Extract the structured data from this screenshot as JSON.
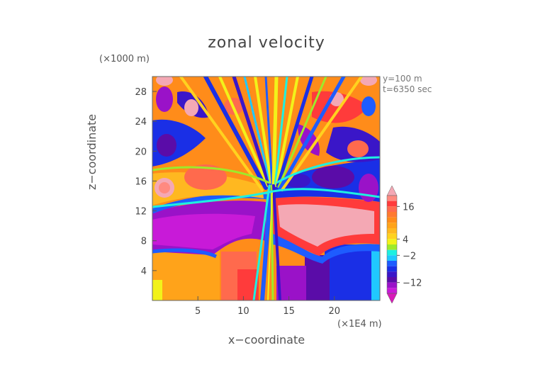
{
  "chart_data": {
    "type": "heatmap",
    "title": "zonal velocity",
    "xlabel": "x−coordinate",
    "ylabel": "z−coordinate",
    "x_unit_label": "(×1E4 m)",
    "y_unit_label": "(×1000 m)",
    "annotations": [
      "y=100 m",
      "t=6350 sec"
    ],
    "xlim": [
      0,
      25
    ],
    "ylim": [
      0,
      30
    ],
    "x_ticks": [
      5,
      10,
      15,
      20
    ],
    "y_ticks": [
      4,
      8,
      12,
      16,
      20,
      24,
      28
    ],
    "colorbar": {
      "tick_labels": [
        "16",
        "4",
        "−2",
        "−12"
      ],
      "tick_values": [
        16,
        4,
        -2,
        -12
      ],
      "levels": [
        {
          "min": 20,
          "max": null,
          "color": "#f4a8b4"
        },
        {
          "min": 18,
          "max": 20,
          "color": "#ff8a80"
        },
        {
          "min": 16,
          "max": 18,
          "color": "#ff3b3b"
        },
        {
          "min": 14,
          "max": 16,
          "color": "#ff6a4d"
        },
        {
          "min": 12,
          "max": 14,
          "color": "#ff7a30"
        },
        {
          "min": 10,
          "max": 12,
          "color": "#ff8c1a"
        },
        {
          "min": 8,
          "max": 10,
          "color": "#ffa31a"
        },
        {
          "min": 6,
          "max": 8,
          "color": "#ffb820"
        },
        {
          "min": 4,
          "max": 6,
          "color": "#ffd21f"
        },
        {
          "min": 2,
          "max": 4,
          "color": "#f2f21a"
        },
        {
          "min": 0,
          "max": 2,
          "color": "#9eea2a"
        },
        {
          "min": -2,
          "max": 0,
          "color": "#1ef0e0"
        },
        {
          "min": -4,
          "max": -2,
          "color": "#20c8ff"
        },
        {
          "min": -6,
          "max": -4,
          "color": "#1e5cff"
        },
        {
          "min": -8,
          "max": -6,
          "color": "#1a2fe6"
        },
        {
          "min": -10,
          "max": -8,
          "color": "#3a16c8"
        },
        {
          "min": -12,
          "max": -10,
          "color": "#5a0ca8"
        },
        {
          "min": -14,
          "max": -12,
          "color": "#9a12c8"
        },
        {
          "min": -16,
          "max": -14,
          "color": "#c81ad8"
        },
        {
          "min": null,
          "max": -16,
          "color": "#d81ab8"
        }
      ]
    },
    "background_color": "#ff8c1a"
  }
}
